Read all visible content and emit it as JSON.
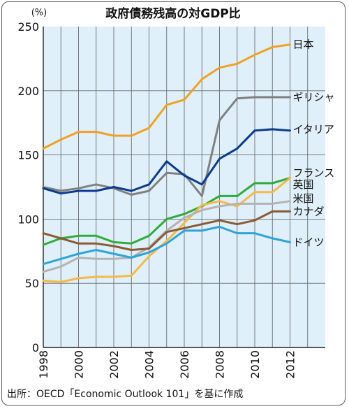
{
  "chart_data": {
    "type": "line",
    "title": "政府債務残高の対GDP比",
    "ylabel_unit": "(%)",
    "source": "出所：OECD「Economic Outlook 101」を基に作成",
    "ylim": [
      0,
      250
    ],
    "yticks": [
      0,
      50,
      100,
      150,
      200,
      250
    ],
    "xlim": [
      1998,
      2014
    ],
    "xticks": [
      "1998",
      "2000",
      "2002",
      "2004",
      "2006",
      "2008",
      "2010",
      "2012"
    ],
    "grid": true,
    "plot_background": "#dff0fa",
    "x": [
      1998,
      1999,
      2000,
      2001,
      2002,
      2003,
      2004,
      2005,
      2006,
      2007,
      2008,
      2009,
      2010,
      2011,
      2012
    ],
    "series": [
      {
        "name": "日本",
        "color": "#f0a028",
        "values": [
          155,
          162,
          168,
          168,
          165,
          165,
          171,
          189,
          193,
          209,
          218,
          221,
          228,
          234,
          236
        ]
      },
      {
        "name": "ギリシャ",
        "color": "#808080",
        "values": [
          125,
          122,
          124,
          127,
          124,
          119,
          122,
          136,
          135,
          118,
          177,
          194,
          195,
          195,
          195
        ]
      },
      {
        "name": "イタリア",
        "color": "#0c3a8c",
        "values": [
          124,
          120,
          122,
          122,
          125,
          122,
          127,
          145,
          134,
          127,
          147,
          155,
          169,
          170,
          169
        ]
      },
      {
        "name": "フランス",
        "color": "#2faa3c",
        "values": [
          80,
          85,
          87,
          87,
          82,
          81,
          87,
          100,
          104,
          110,
          118,
          118,
          128,
          128,
          132
        ]
      },
      {
        "name": "英国",
        "color": "#f6b84a",
        "values": [
          52,
          51,
          54,
          55,
          55,
          56,
          71,
          83,
          97,
          111,
          114,
          110,
          121,
          121,
          132
        ]
      },
      {
        "name": "米国",
        "color": "#b3b3b3",
        "values": [
          59,
          63,
          70,
          69,
          69,
          70,
          78,
          91,
          101,
          107,
          110,
          112,
          112,
          112,
          114
        ]
      },
      {
        "name": "カナダ",
        "color": "#8b5a34",
        "values": [
          89,
          85,
          81,
          81,
          79,
          76,
          77,
          90,
          93,
          96,
          99,
          96,
          99,
          106,
          106
        ]
      },
      {
        "name": "ドイツ",
        "color": "#2ea3d7",
        "values": [
          65,
          69,
          73,
          76,
          73,
          70,
          74,
          81,
          91,
          91,
          94,
          89,
          89,
          85,
          82
        ]
      }
    ]
  }
}
